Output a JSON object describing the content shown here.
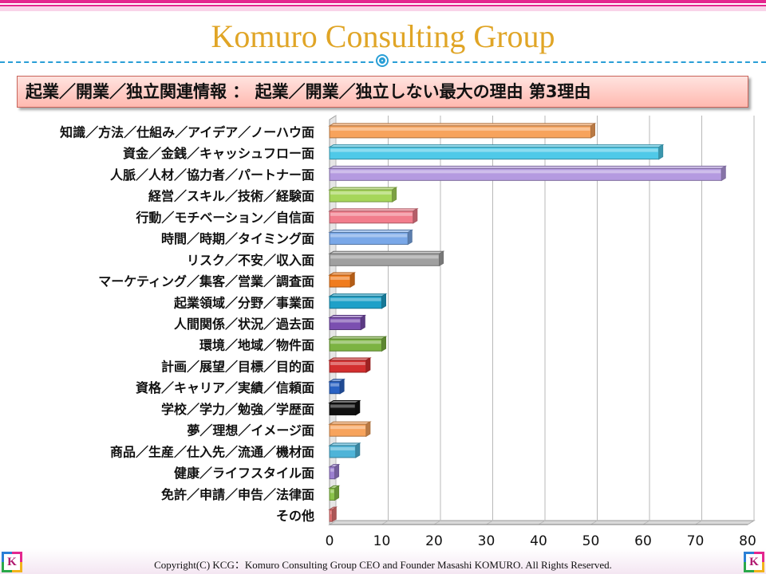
{
  "header": {
    "brand": "Komuro Consulting Group",
    "subtitle": "起業／開業／独立関連情報 ： 起業／開業／独立しない最大の理由 第3理由"
  },
  "footer": {
    "copyright": "Copyright(C) KCG：Komuro Consulting Group CEO and Founder Masashi KOMURO. All Rights Reserved.",
    "logo_letter": "K"
  },
  "chart_data": {
    "type": "bar",
    "orientation": "horizontal",
    "categories": [
      "知識／方法／仕組み／アイデア／ノーハウ面",
      "資金／金銭／キャッシュフロー面",
      "人脈／人材／協力者／パートナー面",
      "経営／スキル／技術／経験面",
      "行動／モチベーション／自信面",
      "時間／時期／タイミング面",
      "リスク／不安／収入面",
      "マーケティング／集客／営業／調査面",
      "起業領域／分野／事業面",
      "人間関係／状況／過去面",
      "環境／地域／物件面",
      "計画／展望／目標／目的面",
      "資格／キャリア／実績／信頼面",
      "学校／学力／勉強／学歴面",
      "夢／理想／イメージ面",
      "商品／生産／仕入先／流通／機材面",
      "健康／ライフスタイル面",
      "免許／申請／申告／法律面",
      "その他"
    ],
    "values": [
      50,
      63,
      75,
      12,
      16,
      15,
      21,
      4,
      10,
      6,
      10,
      7,
      2,
      5,
      7,
      5,
      1,
      1,
      0.5
    ],
    "colors": [
      "#f7a35c",
      "#4fc9e8",
      "#b49ae0",
      "#a6d65a",
      "#f27d8c",
      "#7aa8e8",
      "#a0a0a0",
      "#f07c1e",
      "#1ea0c8",
      "#7b4fb0",
      "#7cb342",
      "#d32f2f",
      "#2a62c4",
      "#111111",
      "#f7a35c",
      "#4fb4d8",
      "#9b7fd0",
      "#8bc34a",
      "#e57373"
    ],
    "xlim": [
      0,
      80
    ],
    "x_ticks": [
      0,
      10,
      20,
      30,
      40,
      50,
      60,
      70,
      80
    ],
    "grid": true
  }
}
